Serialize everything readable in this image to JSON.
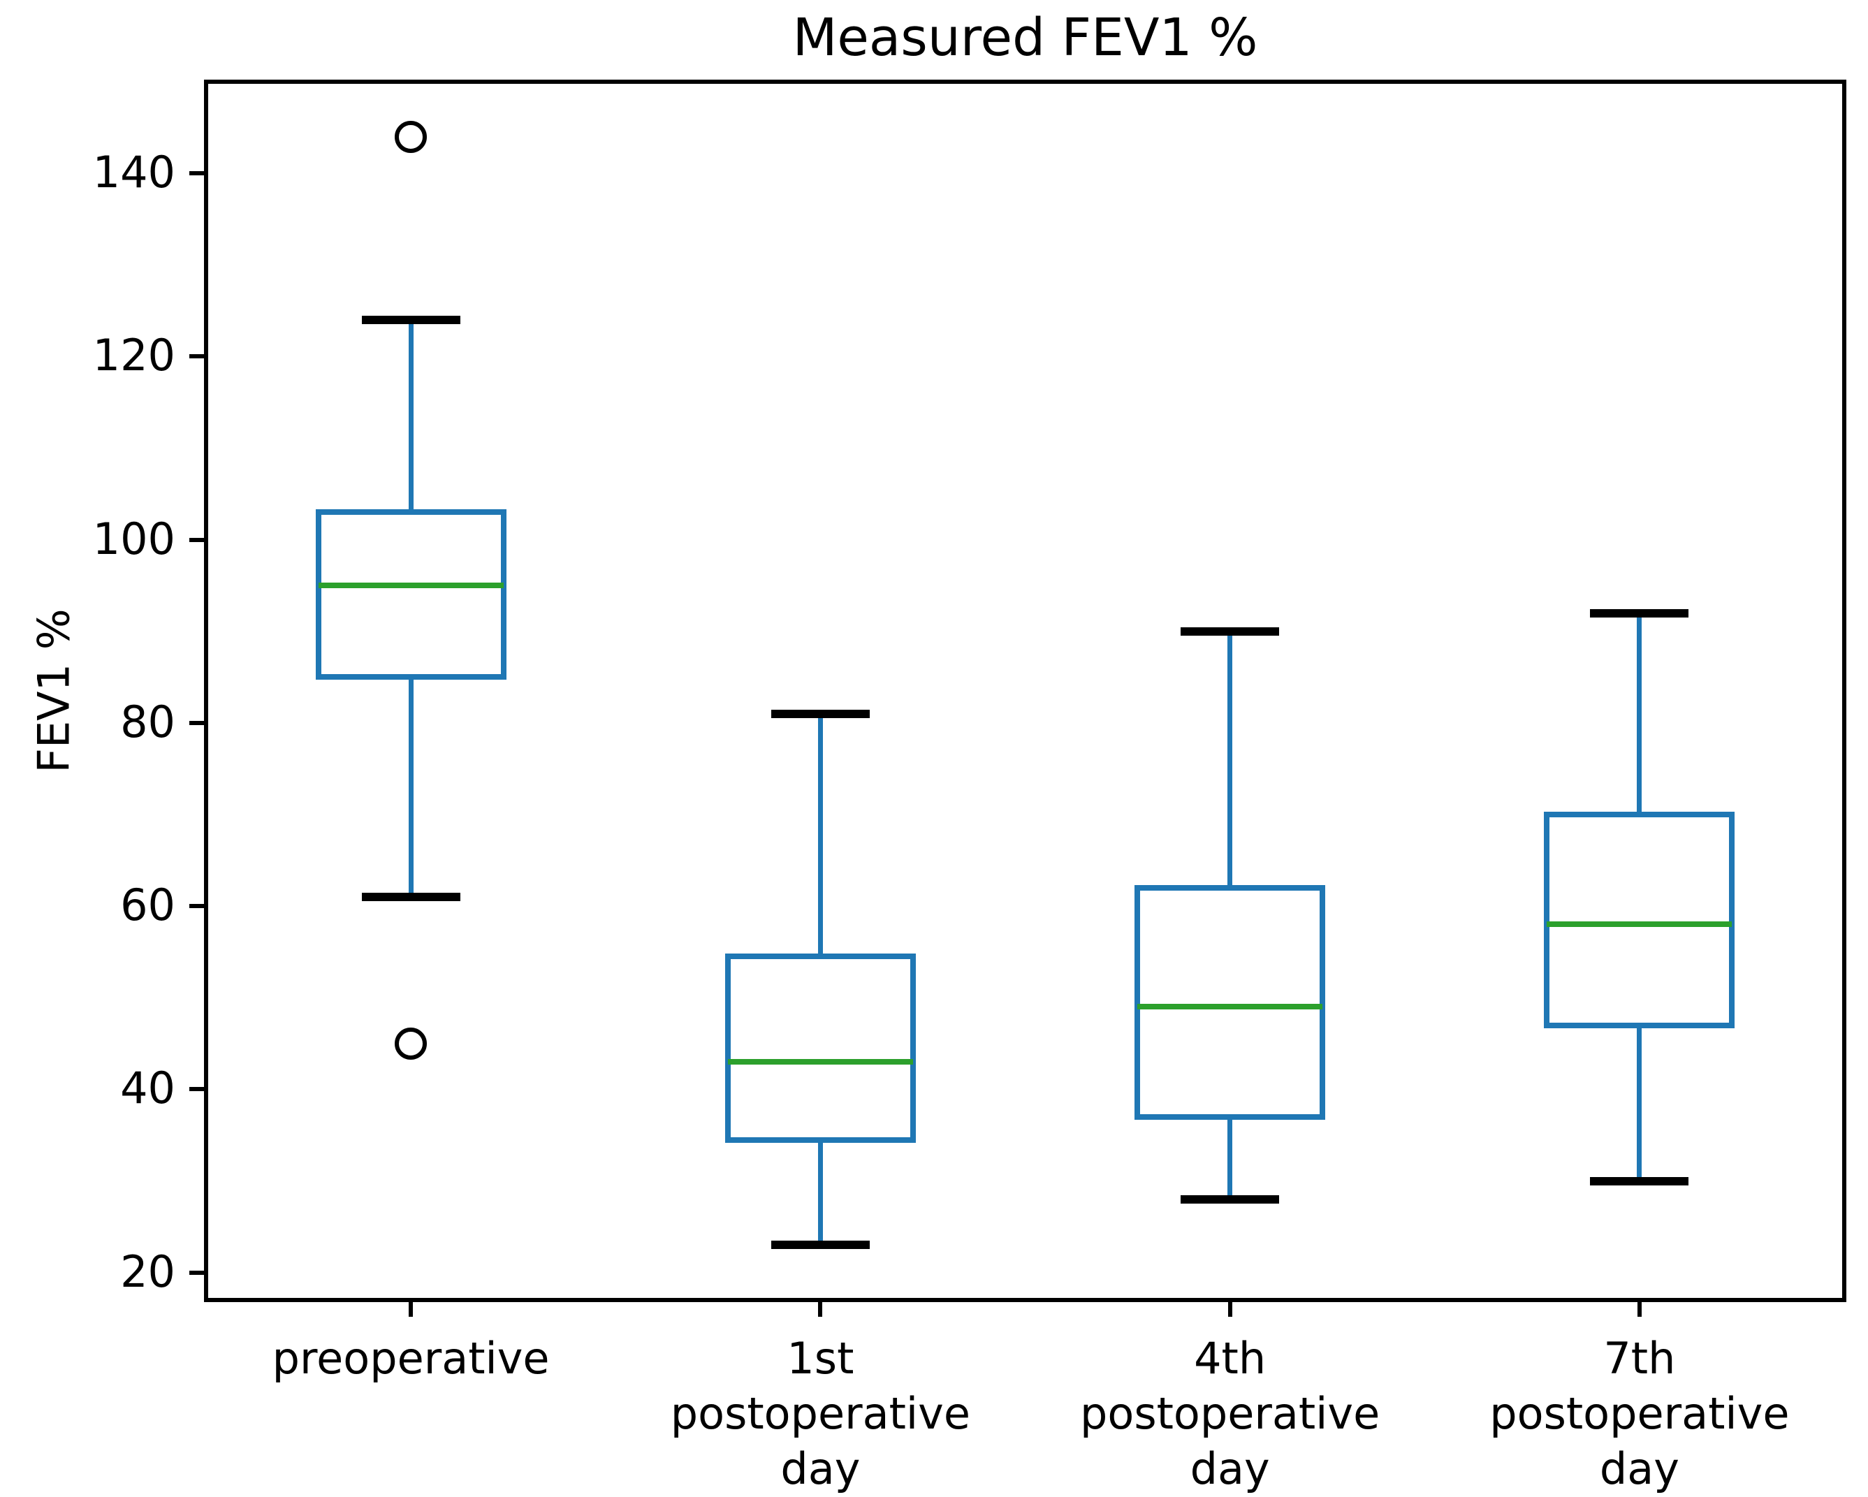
{
  "chart_data": {
    "type": "box",
    "title": "Measured FEV1 %",
    "ylabel": "FEV1 %",
    "xlabel": "",
    "ylim": [
      17,
      150
    ],
    "yticks": [
      20,
      40,
      60,
      80,
      100,
      120,
      140
    ],
    "grid": false,
    "legend": null,
    "categories": [
      {
        "lines": [
          "preoperative"
        ]
      },
      {
        "lines": [
          "1st",
          "postoperative",
          "day"
        ]
      },
      {
        "lines": [
          "4th",
          "postoperative",
          "day"
        ]
      },
      {
        "lines": [
          "7th",
          "postoperative",
          "day"
        ]
      }
    ],
    "series": [
      {
        "name": "preoperative",
        "whisker_low": 61,
        "q1": 85,
        "median": 95,
        "q3": 103,
        "whisker_high": 124,
        "outliers": [
          144,
          45
        ]
      },
      {
        "name": "1st postoperative day",
        "whisker_low": 23,
        "q1": 34.5,
        "median": 43,
        "q3": 54.5,
        "whisker_high": 81,
        "outliers": []
      },
      {
        "name": "4th postoperative day",
        "whisker_low": 28,
        "q1": 37,
        "median": 49,
        "q3": 62,
        "whisker_high": 90,
        "outliers": []
      },
      {
        "name": "7th postoperative day",
        "whisker_low": 30,
        "q1": 47,
        "median": 58,
        "q3": 70,
        "whisker_high": 92,
        "outliers": []
      }
    ],
    "colors": {
      "box": "#1f77b4",
      "median": "#2ca02c",
      "whisker": "#1f77b4",
      "cap": "#000000",
      "outlier": "#000000",
      "text": "#000000",
      "background": "#ffffff"
    }
  }
}
